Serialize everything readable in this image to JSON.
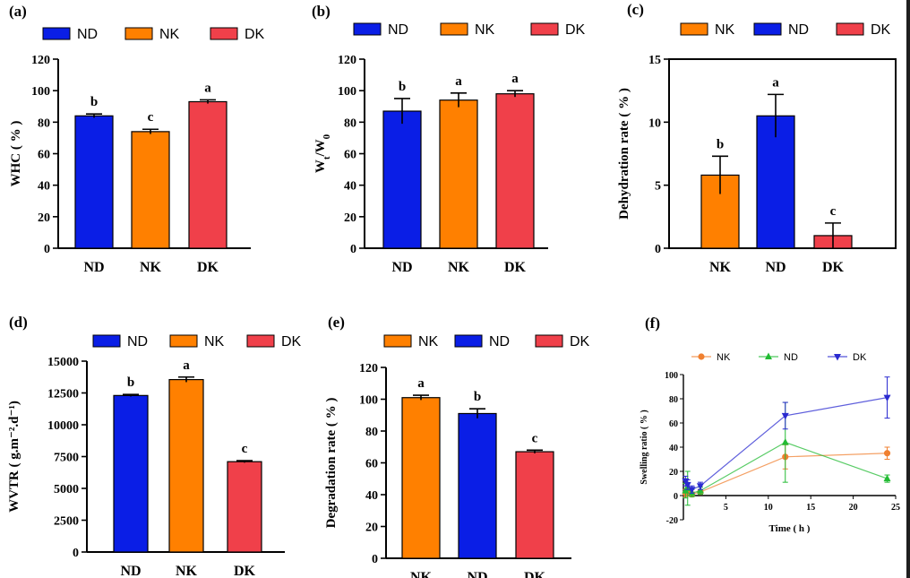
{
  "figure_title": "Six-panel comparison of ND, NK, DK samples",
  "colors": {
    "ND": "#0a1ee6",
    "NK": "#ff8000",
    "DK": "#f0404a",
    "ink": "#000000"
  },
  "chart_data": [
    {
      "id": "a",
      "type": "bar",
      "panel_label": "(a)",
      "categories": [
        "ND",
        "NK",
        "DK"
      ],
      "values": [
        84,
        74,
        93
      ],
      "errors": [
        1.2,
        1.5,
        1.2
      ],
      "letters": [
        "b",
        "c",
        "a"
      ],
      "legend": [
        "ND",
        "NK",
        "DK"
      ],
      "ylabel": "WHC ( % )",
      "ylim": [
        0,
        120
      ],
      "yticks": [
        "0",
        "20",
        "40",
        "60",
        "80",
        "100",
        "120"
      ]
    },
    {
      "id": "b",
      "type": "bar",
      "panel_label": "(b)",
      "categories": [
        "ND",
        "NK",
        "DK"
      ],
      "values": [
        87,
        94,
        98
      ],
      "errors": [
        8,
        4.5,
        2
      ],
      "letters": [
        "b",
        "a",
        "a"
      ],
      "legend": [
        "ND",
        "NK",
        "DK"
      ],
      "ylabel": "Wt/W0",
      "ylim": [
        0,
        120
      ],
      "yticks": [
        "0",
        "20",
        "40",
        "60",
        "80",
        "100",
        "120"
      ]
    },
    {
      "id": "c",
      "type": "bar",
      "panel_label": "(c)",
      "categories": [
        "NK",
        "ND",
        "DK"
      ],
      "values": [
        5.8,
        10.5,
        1.0
      ],
      "errors": [
        1.5,
        1.7,
        1.0
      ],
      "letters": [
        "b",
        "a",
        "c"
      ],
      "legend": [
        "NK",
        "ND",
        "DK"
      ],
      "ylabel": "Dehydration rate ( % )",
      "ylim": [
        0,
        15
      ],
      "yticks": [
        "0",
        "5",
        "10",
        "15"
      ]
    },
    {
      "id": "d",
      "type": "bar",
      "panel_label": "(d)",
      "categories": [
        "ND",
        "NK",
        "DK"
      ],
      "values": [
        12300,
        13550,
        7100
      ],
      "errors": [
        80,
        200,
        80
      ],
      "letters": [
        "b",
        "a",
        "c"
      ],
      "legend": [
        "ND",
        "NK",
        "DK"
      ],
      "ylabel": "WVTR ( g.m⁻².d⁻¹)",
      "ylim": [
        0,
        15000
      ],
      "yticks": [
        "0",
        "2500",
        "5000",
        "7500",
        "10000",
        "12500",
        "15000"
      ]
    },
    {
      "id": "e",
      "type": "bar",
      "panel_label": "(e)",
      "categories": [
        "NK",
        "ND",
        "DK"
      ],
      "values": [
        101,
        91,
        67
      ],
      "errors": [
        1.5,
        3,
        1
      ],
      "letters": [
        "a",
        "b",
        "c"
      ],
      "legend": [
        "NK",
        "ND",
        "DK"
      ],
      "ylabel": "Degradation rate ( % )",
      "ylim": [
        0,
        120
      ],
      "yticks": [
        "0",
        "20",
        "40",
        "60",
        "80",
        "100",
        "120"
      ]
    },
    {
      "id": "f",
      "type": "line",
      "panel_label": "(f)",
      "xlabel": "Time ( h )",
      "ylabel": "Swelling ratio ( % )",
      "xlim": [
        0,
        25
      ],
      "ylim": [
        -20,
        100
      ],
      "xticks": [
        "5",
        "10",
        "15",
        "20",
        "25"
      ],
      "yticks": [
        "-20",
        "0",
        "20",
        "40",
        "60",
        "80",
        "100"
      ],
      "series": [
        {
          "name": "NK",
          "marker": "circle",
          "color": "#f08030",
          "x": [
            0.25,
            0.5,
            1,
            2,
            12,
            24
          ],
          "y": [
            2,
            3,
            1,
            3,
            32,
            35
          ],
          "err": [
            3,
            3,
            2,
            2,
            10,
            5
          ]
        },
        {
          "name": "ND",
          "marker": "triangle-up",
          "color": "#22bb33",
          "x": [
            0.25,
            0.5,
            1,
            2,
            12,
            24
          ],
          "y": [
            4,
            6,
            2,
            4,
            44,
            14
          ],
          "err": [
            6,
            14,
            3,
            3,
            33,
            3
          ]
        },
        {
          "name": "DK",
          "marker": "triangle-down",
          "color": "#2a2ad0",
          "x": [
            0.25,
            0.5,
            1,
            2,
            12,
            24
          ],
          "y": [
            12,
            9,
            5,
            8,
            66,
            81
          ],
          "err": [
            4,
            4,
            3,
            3,
            11,
            17
          ]
        }
      ]
    }
  ]
}
